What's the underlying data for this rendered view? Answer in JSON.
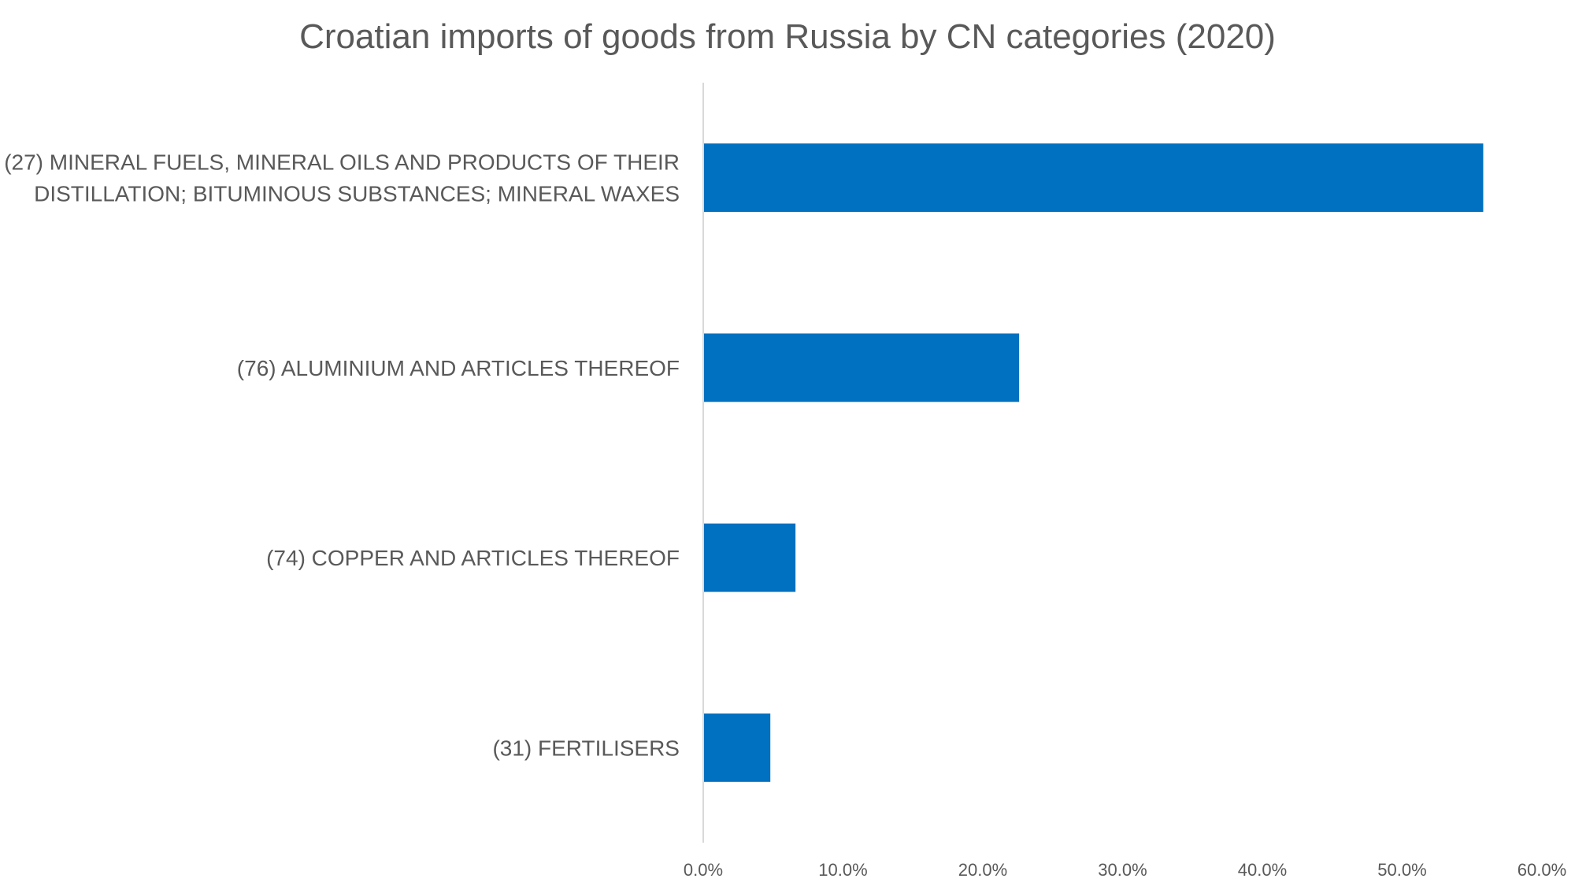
{
  "chart_data": {
    "type": "bar",
    "orientation": "horizontal",
    "title": "Croatian imports of goods from Russia by CN categories (2020)",
    "xlabel": "",
    "ylabel": "",
    "categories": [
      [
        "(27) MINERAL FUELS, MINERAL OILS AND PRODUCTS OF THEIR",
        "DISTILLATION; BITUMINOUS SUBSTANCES; MINERAL WAXES"
      ],
      [
        "(76) ALUMINIUM AND ARTICLES THEREOF"
      ],
      [
        "(74) COPPER AND ARTICLES THEREOF"
      ],
      [
        "(31) FERTILISERS"
      ]
    ],
    "values": [
      55.8,
      22.6,
      6.6,
      4.8
    ],
    "xlim": [
      0,
      60
    ],
    "x_ticks": [
      "0.0%",
      "10.0%",
      "20.0%",
      "30.0%",
      "40.0%",
      "50.0%",
      "60.0%"
    ],
    "bar_color": "#0070C0",
    "axis_color": "#D9D9D9",
    "grid": false,
    "legend": "none"
  }
}
